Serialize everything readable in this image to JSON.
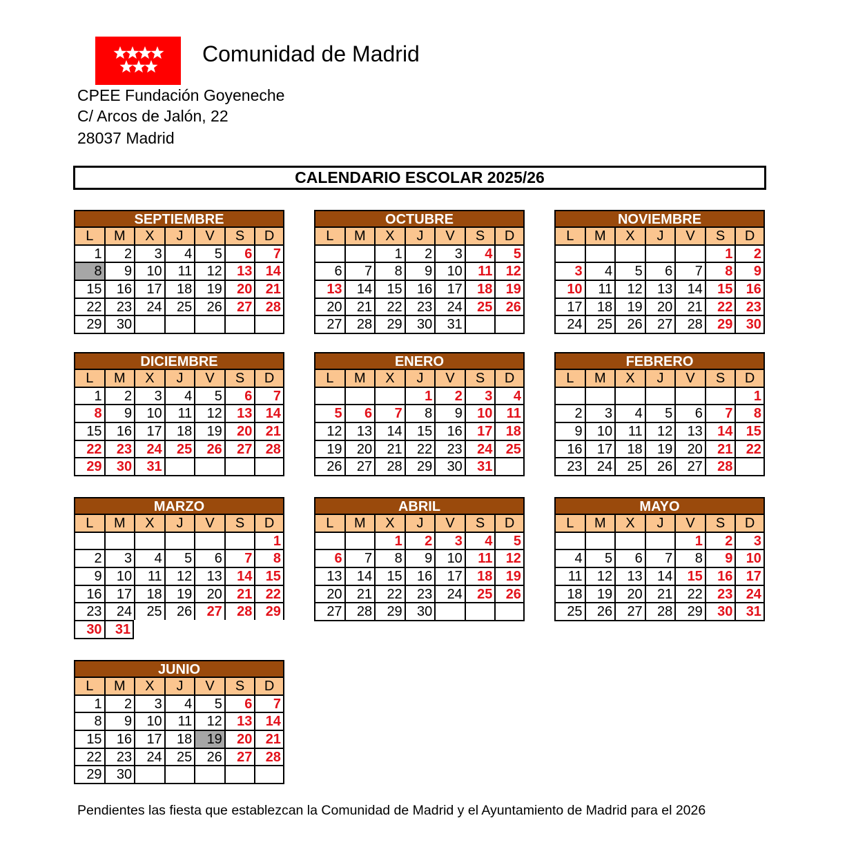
{
  "header": {
    "organization": "Comunidad de Madrid",
    "school": "CPEE Fundación Goyeneche",
    "street": "C/ Arcos de Jalón, 22",
    "city": "28037 Madrid"
  },
  "title": "CALENDARIO ESCOLAR 2025/26",
  "weekdays": [
    "L",
    "M",
    "X",
    "J",
    "V",
    "S",
    "D"
  ],
  "colors": {
    "month_header": "#9a4a0c",
    "weekday_header": "#fbc58f",
    "holiday": "#e3121b",
    "marked": "#a6a6a6",
    "logo": "#ff0000"
  },
  "months": [
    {
      "name": "SEPTIEMBRE",
      "year": 2025,
      "month": 9,
      "red": [
        6,
        7,
        13,
        14,
        20,
        21,
        27,
        28
      ],
      "gray": [
        8
      ]
    },
    {
      "name": "OCTUBRE",
      "year": 2025,
      "month": 10,
      "red": [
        4,
        5,
        11,
        12,
        13,
        18,
        19,
        25,
        26
      ],
      "gray": []
    },
    {
      "name": "NOVIEMBRE",
      "year": 2025,
      "month": 11,
      "red": [
        1,
        2,
        3,
        8,
        9,
        10,
        15,
        16,
        22,
        23,
        29,
        30
      ],
      "gray": []
    },
    {
      "name": "DICIEMBRE",
      "year": 2025,
      "month": 12,
      "red": [
        6,
        7,
        8,
        13,
        14,
        20,
        21,
        22,
        23,
        24,
        25,
        26,
        27,
        28,
        29,
        30,
        31
      ],
      "gray": []
    },
    {
      "name": "ENERO",
      "year": 2026,
      "month": 1,
      "red": [
        1,
        2,
        3,
        4,
        5,
        6,
        7,
        10,
        11,
        17,
        18,
        24,
        25,
        31
      ],
      "gray": []
    },
    {
      "name": "FEBRERO",
      "year": 2026,
      "month": 2,
      "red": [
        1,
        7,
        8,
        14,
        15,
        21,
        22,
        28
      ],
      "gray": []
    },
    {
      "name": "MARZO",
      "year": 2026,
      "month": 3,
      "red": [
        1,
        7,
        8,
        14,
        15,
        21,
        22,
        27,
        28,
        29,
        30,
        31
      ],
      "gray": []
    },
    {
      "name": "ABRIL",
      "year": 2026,
      "month": 4,
      "red": [
        1,
        2,
        3,
        4,
        5,
        6,
        11,
        12,
        18,
        19,
        25,
        26
      ],
      "gray": []
    },
    {
      "name": "MAYO",
      "year": 2026,
      "month": 5,
      "red": [
        1,
        2,
        3,
        9,
        10,
        15,
        16,
        17,
        23,
        24,
        30,
        31
      ],
      "gray": []
    },
    {
      "name": "JUNIO",
      "year": 2026,
      "month": 6,
      "red": [
        6,
        7,
        13,
        14,
        20,
        21,
        27,
        28
      ],
      "gray": [
        19
      ]
    }
  ],
  "footer": "Pendientes las fiesta que establezcan la Comunidad de Madrid y el Ayuntamiento de Madrid para el 2026"
}
